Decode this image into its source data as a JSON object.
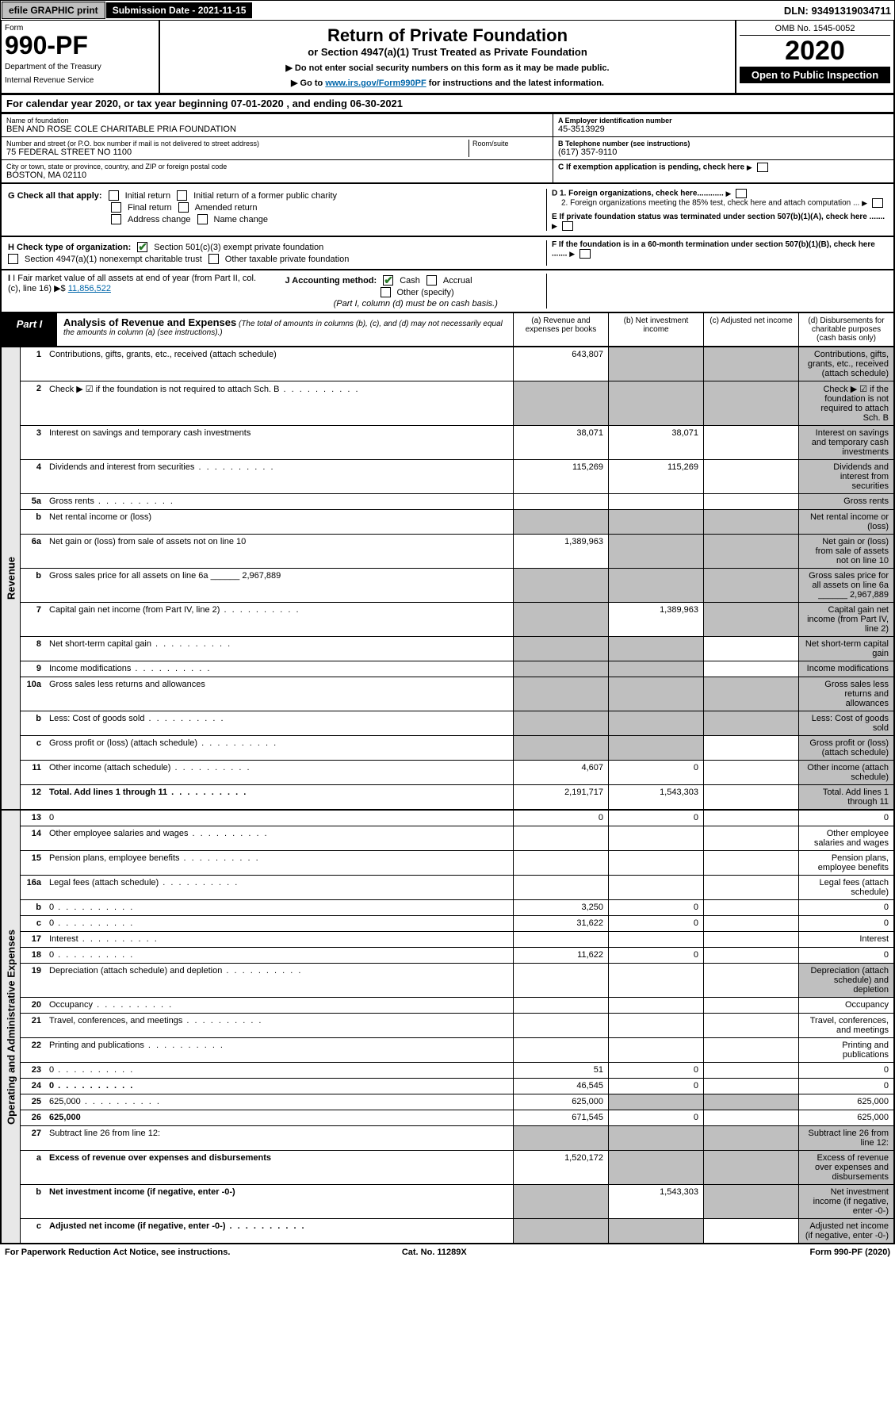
{
  "top": {
    "efile": "efile GRAPHIC print",
    "subdate": "Submission Date - 2021-11-15",
    "dln": "DLN: 93491319034711"
  },
  "header": {
    "form": "Form",
    "formnum": "990-PF",
    "dept": "Department of the Treasury",
    "irs": "Internal Revenue Service",
    "title": "Return of Private Foundation",
    "subtitle": "or Section 4947(a)(1) Trust Treated as Private Foundation",
    "note1": "▶ Do not enter social security numbers on this form as it may be made public.",
    "note2_pre": "▶ Go to ",
    "note2_link": "www.irs.gov/Form990PF",
    "note2_post": " for instructions and the latest information.",
    "omb": "OMB No. 1545-0052",
    "year": "2020",
    "open": "Open to Public Inspection"
  },
  "calyear": {
    "pre": "For calendar year 2020, or tax year beginning ",
    "begin": "07-01-2020",
    "mid": " , and ending ",
    "end": "06-30-2021"
  },
  "info": {
    "name_lbl": "Name of foundation",
    "name": "BEN AND ROSE COLE CHARITABLE PRIA FOUNDATION",
    "addr_lbl": "Number and street (or P.O. box number if mail is not delivered to street address)",
    "addr": "75 FEDERAL STREET NO 1100",
    "room_lbl": "Room/suite",
    "city_lbl": "City or town, state or province, country, and ZIP or foreign postal code",
    "city": "BOSTON, MA  02110",
    "ein_lbl": "A Employer identification number",
    "ein": "45-3513929",
    "tel_lbl": "B Telephone number (see instructions)",
    "tel": "(617) 357-9110",
    "c_lbl": "C If exemption application is pending, check here"
  },
  "g": {
    "lbl": "G Check all that apply:",
    "initial": "Initial return",
    "initialpub": "Initial return of a former public charity",
    "final": "Final return",
    "amended": "Amended return",
    "addrchg": "Address change",
    "namechg": "Name change",
    "d1": "D 1. Foreign organizations, check here............",
    "d2": "2. Foreign organizations meeting the 85% test, check here and attach computation ...",
    "e": "E  If private foundation status was terminated under section 507(b)(1)(A), check here ......."
  },
  "h": {
    "lbl": "H Check type of organization:",
    "s501": "Section 501(c)(3) exempt private foundation",
    "s4947": "Section 4947(a)(1) nonexempt charitable trust",
    "other": "Other taxable private foundation",
    "f": "F  If the foundation is in a 60-month termination under section 507(b)(1)(B), check here ......."
  },
  "i": {
    "lbl": "I Fair market value of all assets at end of year (from Part II, col. (c), line 16) ▶$ ",
    "val": "11,856,522",
    "j_lbl": "J Accounting method:",
    "cash": "Cash",
    "accrual": "Accrual",
    "otherspec": "Other (specify)",
    "note": "(Part I, column (d) must be on cash basis.)"
  },
  "part1": {
    "tab": "Part I",
    "title": "Analysis of Revenue and Expenses",
    "title_sub": " (The total of amounts in columns (b), (c), and (d) may not necessarily equal the amounts in column (a) (see instructions).)",
    "ca": "(a) Revenue and expenses per books",
    "cb": "(b) Net investment income",
    "cc": "(c) Adjusted net income",
    "cd": "(d) Disbursements for charitable purposes (cash basis only)"
  },
  "rev_label": "Revenue",
  "exp_label": "Operating and Administrative Expenses",
  "rows_rev": [
    {
      "n": "1",
      "d": "Contributions, gifts, grants, etc., received (attach schedule)",
      "a": "643,807",
      "bG": true,
      "cG": true,
      "dG": true
    },
    {
      "n": "2",
      "d": "Check ▶ ☑ if the foundation is not required to attach Sch. B",
      "aG": true,
      "bG": true,
      "cG": true,
      "dG": true,
      "dots": true
    },
    {
      "n": "3",
      "d": "Interest on savings and temporary cash investments",
      "a": "38,071",
      "b": "38,071",
      "dG": true
    },
    {
      "n": "4",
      "d": "Dividends and interest from securities",
      "a": "115,269",
      "b": "115,269",
      "dG": true,
      "dots": true
    },
    {
      "n": "5a",
      "d": "Gross rents",
      "dG": true,
      "dots": true
    },
    {
      "n": "b",
      "d": "Net rental income or (loss)",
      "aG": true,
      "bG": true,
      "cG": true,
      "dG": true
    },
    {
      "n": "6a",
      "d": "Net gain or (loss) from sale of assets not on line 10",
      "a": "1,389,963",
      "bG": true,
      "cG": true,
      "dG": true
    },
    {
      "n": "b",
      "d": "Gross sales price for all assets on line 6a ______ 2,967,889",
      "aG": true,
      "bG": true,
      "cG": true,
      "dG": true
    },
    {
      "n": "7",
      "d": "Capital gain net income (from Part IV, line 2)",
      "aG": true,
      "b": "1,389,963",
      "cG": true,
      "dG": true,
      "dots": true
    },
    {
      "n": "8",
      "d": "Net short-term capital gain",
      "aG": true,
      "bG": true,
      "dG": true,
      "dots": true
    },
    {
      "n": "9",
      "d": "Income modifications",
      "aG": true,
      "bG": true,
      "dG": true,
      "dots": true
    },
    {
      "n": "10a",
      "d": "Gross sales less returns and allowances",
      "aG": true,
      "bG": true,
      "cG": true,
      "dG": true
    },
    {
      "n": "b",
      "d": "Less: Cost of goods sold",
      "aG": true,
      "bG": true,
      "cG": true,
      "dG": true,
      "dots": true
    },
    {
      "n": "c",
      "d": "Gross profit or (loss) (attach schedule)",
      "aG": true,
      "bG": true,
      "dG": true,
      "dots": true
    },
    {
      "n": "11",
      "d": "Other income (attach schedule)",
      "a": "4,607",
      "b": "0",
      "dG": true,
      "dots": true
    },
    {
      "n": "12",
      "d": "Total. Add lines 1 through 11",
      "a": "2,191,717",
      "b": "1,543,303",
      "dG": true,
      "bold": true,
      "dots": true
    }
  ],
  "rows_exp": [
    {
      "n": "13",
      "d": "0",
      "a": "0",
      "b": "0"
    },
    {
      "n": "14",
      "d": "Other employee salaries and wages",
      "dots": true
    },
    {
      "n": "15",
      "d": "Pension plans, employee benefits",
      "dots": true
    },
    {
      "n": "16a",
      "d": "Legal fees (attach schedule)",
      "dots": true
    },
    {
      "n": "b",
      "d": "0",
      "a": "3,250",
      "b": "0",
      "dots": true
    },
    {
      "n": "c",
      "d": "0",
      "a": "31,622",
      "b": "0",
      "dots": true
    },
    {
      "n": "17",
      "d": "Interest",
      "dots": true
    },
    {
      "n": "18",
      "d": "0",
      "a": "11,622",
      "b": "0",
      "dots": true
    },
    {
      "n": "19",
      "d": "Depreciation (attach schedule) and depletion",
      "dG": true,
      "dots": true
    },
    {
      "n": "20",
      "d": "Occupancy",
      "dots": true
    },
    {
      "n": "21",
      "d": "Travel, conferences, and meetings",
      "dots": true
    },
    {
      "n": "22",
      "d": "Printing and publications",
      "dots": true
    },
    {
      "n": "23",
      "d": "0",
      "a": "51",
      "b": "0",
      "dots": true
    },
    {
      "n": "24",
      "d": "0",
      "a": "46,545",
      "b": "0",
      "bold": true,
      "dots": true
    },
    {
      "n": "25",
      "d": "625,000",
      "a": "625,000",
      "bG": true,
      "cG": true,
      "dots": true
    },
    {
      "n": "26",
      "d": "625,000",
      "a": "671,545",
      "b": "0",
      "bold": true
    },
    {
      "n": "27",
      "d": "Subtract line 26 from line 12:",
      "aG": true,
      "bG": true,
      "cG": true,
      "dG": true
    },
    {
      "n": "a",
      "d": "Excess of revenue over expenses and disbursements",
      "a": "1,520,172",
      "bG": true,
      "cG": true,
      "dG": true,
      "bold": true
    },
    {
      "n": "b",
      "d": "Net investment income (if negative, enter -0-)",
      "aG": true,
      "b": "1,543,303",
      "cG": true,
      "dG": true,
      "bold": true
    },
    {
      "n": "c",
      "d": "Adjusted net income (if negative, enter -0-)",
      "aG": true,
      "bG": true,
      "dG": true,
      "bold": true,
      "dots": true
    }
  ],
  "footer": {
    "l": "For Paperwork Reduction Act Notice, see instructions.",
    "m": "Cat. No. 11289X",
    "r": "Form 990-PF (2020)"
  }
}
